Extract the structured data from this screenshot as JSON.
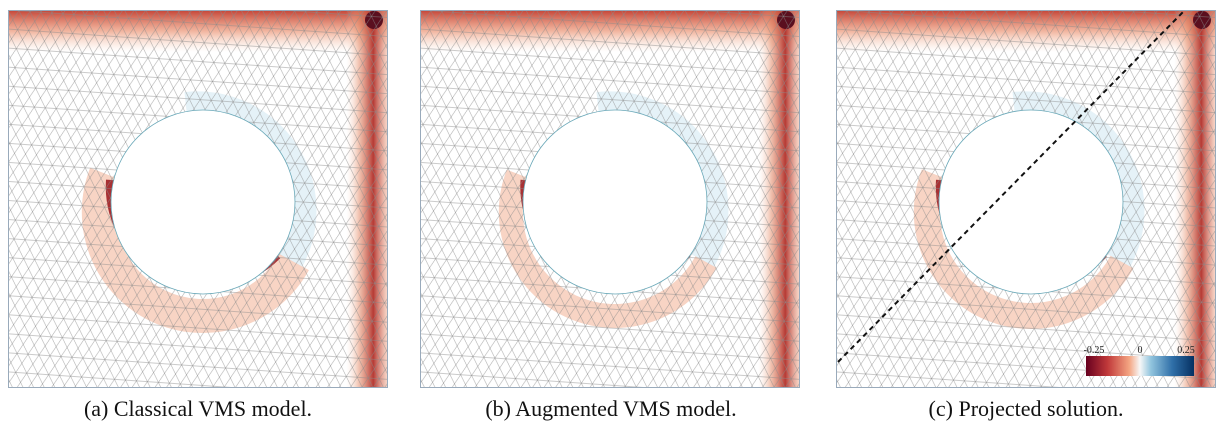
{
  "panels": [
    {
      "caption": "(a) Classical VMS model."
    },
    {
      "caption": "(b) Augmented VMS model."
    },
    {
      "caption": "(c) Projected solution."
    }
  ],
  "colorbar": {
    "labels": [
      "-0.25",
      "0",
      "0.25"
    ]
  }
}
